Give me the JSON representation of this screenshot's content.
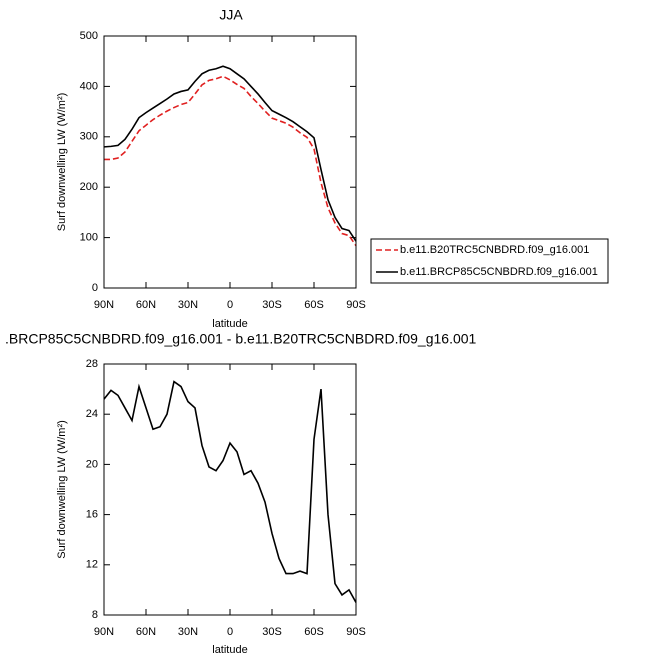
{
  "chart_data": [
    {
      "type": "line",
      "title": "JJA",
      "xlabel": "latitude",
      "ylabel": "Surf downwelling LW (W/m²)",
      "x": [
        90,
        85,
        80,
        75,
        70,
        65,
        60,
        55,
        50,
        45,
        40,
        35,
        30,
        25,
        20,
        15,
        10,
        5,
        0,
        -5,
        -10,
        -15,
        -20,
        -25,
        -30,
        -35,
        -40,
        -45,
        -50,
        -55,
        -60,
        -65,
        -70,
        -75,
        -80,
        -85,
        -90
      ],
      "xlim": [
        90,
        -90
      ],
      "xticks": [
        {
          "value": 90,
          "label": "90N"
        },
        {
          "value": 60,
          "label": "60N"
        },
        {
          "value": 30,
          "label": "30N"
        },
        0,
        {
          "value": -30,
          "label": "30S"
        },
        {
          "value": -60,
          "label": "60S"
        },
        {
          "value": -90,
          "label": "90S"
        }
      ],
      "ylim": [
        0,
        500
      ],
      "yticks": [
        0,
        100,
        200,
        300,
        400,
        500
      ],
      "legend": "outside right",
      "series": [
        {
          "name": "b.e11.B20TRC5CNBDRD.f09_g16.001",
          "color": "#e02020",
          "dash": "dashed",
          "values": [
            255,
            255,
            258,
            270,
            291,
            312,
            323,
            334,
            343,
            351,
            358,
            364,
            368,
            385,
            403,
            412,
            415,
            420,
            413,
            404,
            396,
            380,
            366,
            351,
            337,
            332,
            327,
            319,
            308,
            299,
            276,
            209,
            159,
            129,
            108,
            104,
            84
          ]
        },
        {
          "name": "b.e11.BRCP85C5CNBDRD.f09_g16.001",
          "color": "#000000",
          "dash": "solid",
          "values": [
            280,
            281,
            283,
            295,
            315,
            338,
            348,
            357,
            366,
            375,
            385,
            390,
            393,
            410,
            425,
            432,
            435,
            440,
            435,
            425,
            415,
            400,
            385,
            368,
            352,
            345,
            338,
            330,
            320,
            310,
            298,
            235,
            175,
            140,
            118,
            114,
            93
          ]
        }
      ]
    },
    {
      "type": "line",
      "title": ".BRCP85C5CNBDRD.f09_g16.001 - b.e11.B20TRC5CNBDRD.f09_g16.001",
      "xlabel": "latitude",
      "ylabel": "Surf downwelling LW (W/m²)",
      "x": [
        90,
        85,
        80,
        75,
        70,
        65,
        60,
        55,
        50,
        45,
        40,
        35,
        30,
        25,
        20,
        15,
        10,
        5,
        0,
        -5,
        -10,
        -15,
        -20,
        -25,
        -30,
        -35,
        -40,
        -45,
        -50,
        -55,
        -60,
        -65,
        -70,
        -75,
        -80,
        -85,
        -90
      ],
      "xlim": [
        90,
        -90
      ],
      "xticks": [
        {
          "value": 90,
          "label": "90N"
        },
        {
          "value": 60,
          "label": "60N"
        },
        {
          "value": 30,
          "label": "30N"
        },
        0,
        {
          "value": -30,
          "label": "30S"
        },
        {
          "value": -60,
          "label": "60S"
        },
        {
          "value": -90,
          "label": "90S"
        }
      ],
      "ylim": [
        8,
        28
      ],
      "yticks": [
        8,
        12,
        16,
        20,
        24,
        28
      ],
      "series": [
        {
          "color": "#000000",
          "dash": "solid",
          "values": [
            25.2,
            25.9,
            25.5,
            24.5,
            23.5,
            26.2,
            24.5,
            22.8,
            23.0,
            24.0,
            26.6,
            26.2,
            25.0,
            24.5,
            21.5,
            19.8,
            19.5,
            20.3,
            21.7,
            21.0,
            19.2,
            19.5,
            18.5,
            17.0,
            14.5,
            12.5,
            11.3,
            11.3,
            11.5,
            11.3,
            22.0,
            26.0,
            16.0,
            10.5,
            9.6,
            10.0,
            9.0
          ]
        }
      ]
    }
  ]
}
